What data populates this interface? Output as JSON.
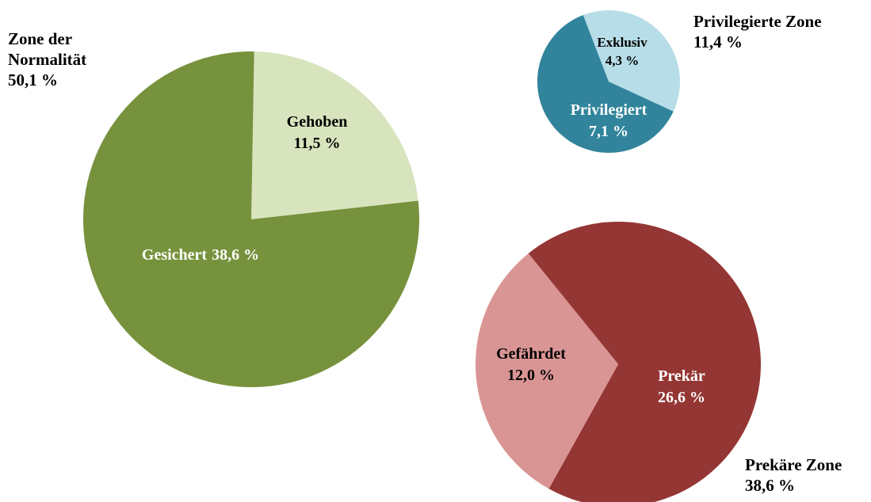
{
  "chart_data": [
    {
      "type": "pie",
      "title": "Zone der Normalität",
      "total": 50.1,
      "total_label": "50,1 %",
      "categories": [
        "Gehoben",
        "Gesichert"
      ],
      "values": [
        11.5,
        38.6
      ],
      "value_labels": [
        "11,5 %",
        "38,6 %"
      ],
      "colors": [
        "#d7e4bd",
        "#76923c"
      ]
    },
    {
      "type": "pie",
      "title": "Privilegierte Zone",
      "total": 11.4,
      "total_label": "11,4 %",
      "categories": [
        "Exklusiv",
        "Privilegiert"
      ],
      "values": [
        4.3,
        7.1
      ],
      "value_labels": [
        "4,3 %",
        "7,1 %"
      ],
      "colors": [
        "#b7dde8",
        "#31849b"
      ]
    },
    {
      "type": "pie",
      "title": "Prekäre Zone",
      "total": 38.6,
      "total_label": "38,6 %",
      "categories": [
        "Prekär",
        "Gefährdet"
      ],
      "values": [
        26.6,
        12.0
      ],
      "value_labels": [
        "26,6 %",
        "12,0 %"
      ],
      "colors": [
        "#943634",
        "#d99594"
      ]
    }
  ]
}
